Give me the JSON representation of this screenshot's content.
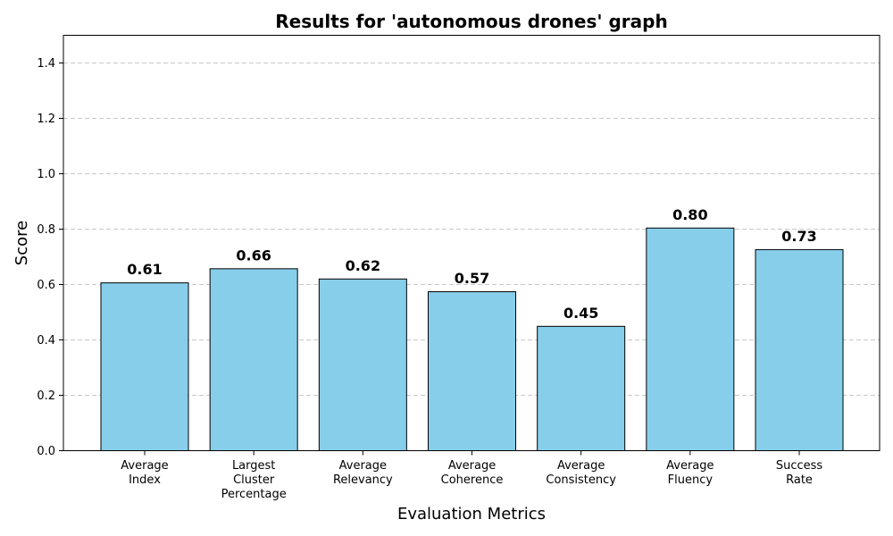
{
  "chart_data": {
    "type": "bar",
    "title": "Results for 'autonomous drones' graph",
    "xlabel": "Evaluation Metrics",
    "ylabel": "Score",
    "ylim": [
      0,
      1.5
    ],
    "yticks": [
      "0.0",
      "0.2",
      "0.4",
      "0.6",
      "0.8",
      "1.0",
      "1.2",
      "1.4"
    ],
    "grid": "y-dashed",
    "bar_color": "#87CEEB",
    "categories": [
      [
        "Average",
        "Index"
      ],
      [
        "Largest",
        "Cluster",
        "Percentage"
      ],
      [
        "Average",
        "Relevancy"
      ],
      [
        "Average",
        "Coherence"
      ],
      [
        "Average",
        "Consistency"
      ],
      [
        "Average",
        "Fluency"
      ],
      [
        "Success",
        "Rate"
      ]
    ],
    "values": [
      0.606,
      0.657,
      0.62,
      0.574,
      0.449,
      0.804,
      0.726
    ],
    "value_labels": [
      "0.61",
      "0.66",
      "0.62",
      "0.57",
      "0.45",
      "0.80",
      "0.73"
    ]
  }
}
